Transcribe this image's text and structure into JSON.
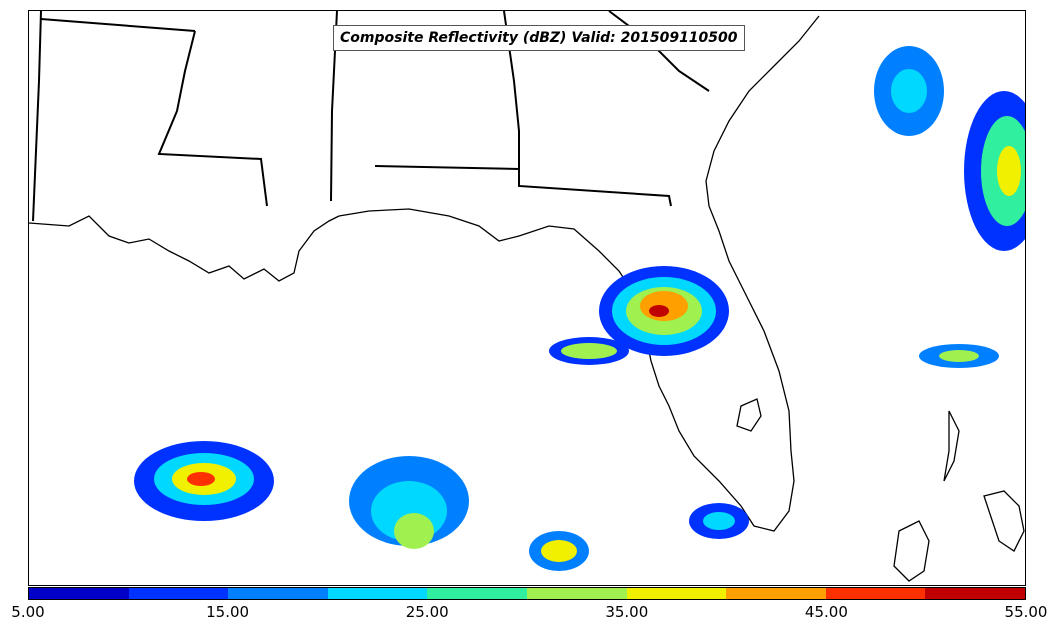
{
  "title": "Composite Reflectivity (dBZ) Valid: 201509110500",
  "colorbar": {
    "colors": [
      "#0000c8",
      "#0032ff",
      "#0080ff",
      "#00d8ff",
      "#30f0a0",
      "#a0f050",
      "#f0f000",
      "#ffa000",
      "#ff3000",
      "#c00000"
    ],
    "tick_labels": [
      "5.00",
      "15.00",
      "25.00",
      "35.00",
      "45.00",
      "55.00"
    ],
    "range": [
      5,
      55
    ],
    "unit": "dBZ"
  },
  "map": {
    "region": "Gulf of Mexico and southeastern United States",
    "projection_bounds_note": "Louisiana to Florida and western Atlantic"
  }
}
